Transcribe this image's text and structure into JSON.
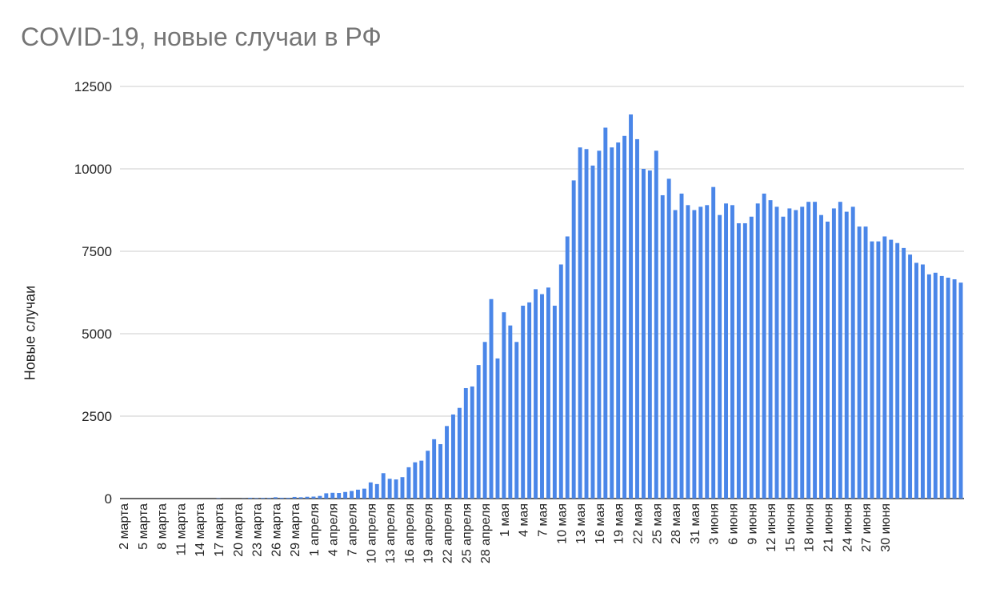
{
  "chart_data": {
    "type": "bar",
    "title": "COVID-19, новые случаи в РФ",
    "ylabel": "Новые случаи",
    "xlabel": "",
    "ylim": [
      0,
      12500
    ],
    "yticks": [
      0,
      2500,
      5000,
      7500,
      10000,
      12500
    ],
    "grid": true,
    "bar_color": "#4a86e8",
    "x_ticklabels": [
      "2 марта",
      "5 марта",
      "8 марта",
      "11 марта",
      "14 марта",
      "17 марта",
      "20 марта",
      "23 марта",
      "26 марта",
      "29 марта",
      "1 апреля",
      "4 апреля",
      "7 апреля",
      "10 апреля",
      "13 апреля",
      "16 апреля",
      "19 апреля",
      "22 апреля",
      "25 апреля",
      "28 апреля",
      "1 мая",
      "4 мая",
      "7 мая",
      "10 мая",
      "13 мая",
      "16 мая",
      "19 мая",
      "22 мая",
      "25 мая",
      "28 мая",
      "31 мая",
      "3 июня",
      "6 июня",
      "9 июня",
      "12 июня",
      "15 июня",
      "18 июня",
      "21 июня",
      "24 июня",
      "27 июня",
      "30 июня"
    ],
    "series": [
      {
        "values": [
          0,
          0,
          0,
          0,
          0,
          0,
          0,
          0,
          0,
          0,
          0,
          0,
          0,
          0,
          0,
          10,
          0,
          0,
          0,
          5,
          25,
          15,
          20,
          20,
          40,
          25,
          25,
          50,
          40,
          55,
          60,
          80,
          160,
          175,
          170,
          200,
          230,
          270,
          300,
          490,
          440,
          770,
          600,
          580,
          650,
          950,
          1100,
          1150,
          1450,
          1800,
          1650,
          2200,
          2550,
          2750,
          3350,
          3400,
          4050,
          4750,
          6050,
          4250,
          5650,
          5250,
          4750,
          5850,
          5950,
          6350,
          6200,
          6400,
          5850,
          7100,
          7950,
          9650,
          10650,
          10600,
          10100,
          10550,
          11250,
          10650,
          10800,
          11000,
          11650,
          10900,
          10000,
          9950,
          10550,
          9200,
          9700,
          8750,
          9250,
          8900,
          8750,
          8850,
          8900,
          9450,
          8600,
          8950,
          8900,
          8350,
          8350,
          8550,
          8950,
          9250,
          9050,
          8850,
          8550,
          8800,
          8750,
          8850,
          9000,
          9000,
          8600,
          8400,
          8800,
          9000,
          8700,
          8850,
          8250,
          8250,
          7800,
          7800,
          7950,
          7850,
          7750,
          7600,
          7400,
          7150,
          7100,
          6800,
          6850,
          6750,
          6700,
          6650,
          6550
        ]
      }
    ]
  }
}
